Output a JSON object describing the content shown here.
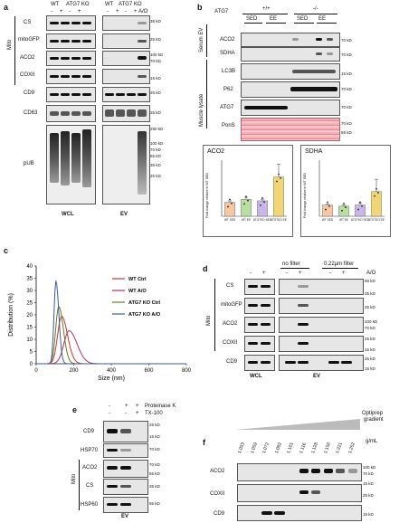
{
  "a": {
    "letter": "a",
    "header": {
      "wt": "WT",
      "ko": "ATG7 KO",
      "ao": "A/O",
      "minus": "-",
      "plus": "+"
    },
    "mito": "Mito",
    "rows": [
      "CS",
      "mitoGFP",
      "ACO2",
      "COXII",
      "CD9",
      "CD63",
      "pUB"
    ],
    "markers_ev": [
      "35 kD",
      "25 kD",
      "100 kD",
      "70 kD",
      "15 kD",
      "25 kD",
      "25 kD"
    ],
    "pub_markers": [
      "250 kD",
      "100 kD",
      "70 kD",
      "55 kD",
      "35 kD",
      "25 kD"
    ],
    "wcl": "WCL",
    "ev": "EV"
  },
  "b": {
    "letter": "b",
    "atg7": "ATG7",
    "pp": "+/+",
    "mm": "-/-",
    "sed": "SED",
    "ee": "EE",
    "serum_ev": "Serum EV",
    "muscle_lysate": "Muscle lysate",
    "rows": [
      "ACO2",
      "SDHA",
      "LC3B",
      "P62",
      "ATG7",
      "PonS"
    ],
    "markers": [
      "70 kD",
      "70 kD",
      "15 kD",
      "70 kD",
      "70 kD",
      "70 kD",
      "55 kD"
    ],
    "bar_charts": [
      {
        "title": "ACO2",
        "ylabel": "Fold change relative to WT SED",
        "categories": [
          "WT SED",
          "WT EE",
          "ATG7KO SED",
          "ATG7KO EE"
        ],
        "values": [
          1.0,
          1.2,
          1.1,
          2.8
        ],
        "errors": [
          0.1,
          0.15,
          0.12,
          0.9
        ],
        "colors": [
          "#f7c7a3",
          "#b7dfa0",
          "#c9b6e6",
          "#f2d574"
        ],
        "ylim": [
          0,
          4
        ]
      },
      {
        "title": "SDHA",
        "ylabel": "Fold change relative to WT SED",
        "categories": [
          "WT SED",
          "WT EE",
          "ATG7KO SED",
          "ATG7KO EE"
        ],
        "values": [
          1.0,
          0.9,
          1.0,
          2.2
        ],
        "errors": [
          0.1,
          0.1,
          0.15,
          1.1
        ],
        "colors": [
          "#f7c7a3",
          "#b7dfa0",
          "#c9b6e6",
          "#f2d574"
        ],
        "ylim": [
          0,
          5
        ]
      }
    ]
  },
  "c": {
    "letter": "c",
    "chart_data": {
      "type": "line",
      "xlabel": "Size (nm)",
      "ylabel": "Distribution (%)",
      "xlim": [
        0,
        800
      ],
      "ylim": [
        0,
        40
      ],
      "xticks": [
        0,
        200,
        400,
        600,
        800
      ],
      "yticks": [
        0,
        5,
        10,
        15,
        20,
        25,
        30,
        35,
        40
      ],
      "series": [
        {
          "name": "WT Ctrl",
          "color": "#c0392b",
          "peak_x": 135,
          "peak_y": 19.5,
          "width": 45
        },
        {
          "name": "WT A/O",
          "color": "#b03060",
          "peak_x": 175,
          "peak_y": 13.5,
          "width": 60
        },
        {
          "name": "ATG7 KO Ctrl",
          "color": "#6b7a1e",
          "peak_x": 120,
          "peak_y": 23.5,
          "width": 35
        },
        {
          "name": "ATG7 KO A/O",
          "color": "#3b5ba5",
          "peak_x": 105,
          "peak_y": 34,
          "width": 22
        }
      ]
    }
  },
  "d": {
    "letter": "d",
    "no_filter": "no filter",
    "filter": "0.22µm filter",
    "ao": "A/O",
    "minus": "-",
    "plus": "+",
    "mito": "Mito",
    "rows": [
      "CS",
      "mitoGFP",
      "ACO2",
      "COXII",
      "CD9"
    ],
    "markers": [
      "55 kD",
      "35 kD",
      "25 kD",
      "100 kD",
      "70 kD",
      "25 kD",
      "15 kD",
      "25 kD",
      "15 kD"
    ],
    "wcl": "WCL",
    "ev": "EV"
  },
  "e": {
    "letter": "e",
    "proteinase": "Proteinase K",
    "tx": "TX-100",
    "minus": "-",
    "plus": "+",
    "mito": "Mito",
    "rows": [
      "CD9",
      "HSP70",
      "ACO2",
      "CS",
      "HSP60"
    ],
    "markers": [
      "25 kD",
      "15 kD",
      "70 kD",
      "70 kD",
      "55 kD",
      "35 kD",
      "55 kD"
    ],
    "ev": "EV"
  },
  "f": {
    "letter": "f",
    "gradient": [
      "Optiprep",
      "gradient"
    ],
    "unit": "g/mL",
    "densities": [
      "1.053",
      "1.059",
      "1.072",
      "1.082",
      "1.101",
      "1.116",
      "1.128",
      "1.150",
      "1.221",
      "1.252"
    ],
    "rows": [
      "ACO2",
      "COXII",
      "CD9"
    ],
    "markers": [
      "100 kD",
      "70 kD",
      "15 kD",
      "25 kD",
      "15 kD"
    ]
  }
}
